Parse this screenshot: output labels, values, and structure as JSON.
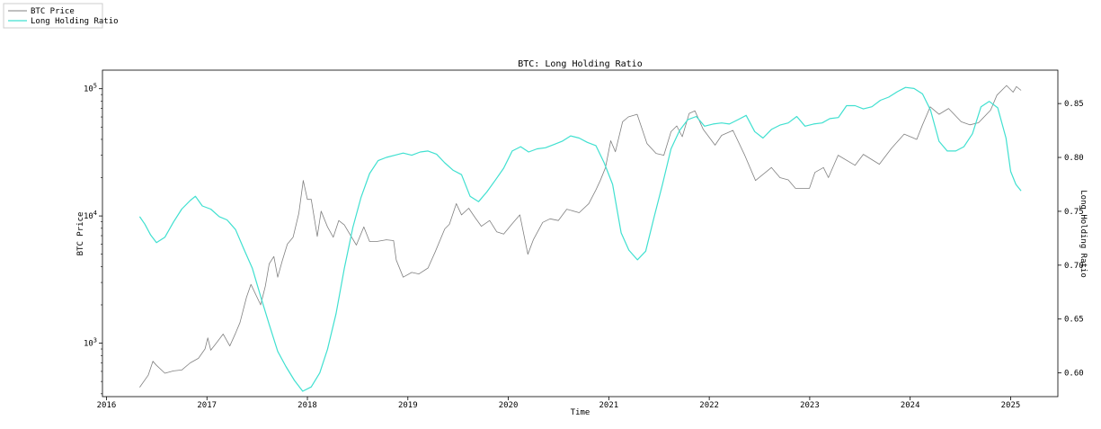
{
  "chart_data": {
    "type": "line",
    "title": "BTC: Long Holding Ratio",
    "xlabel": "Time",
    "ylabel_left": "BTC Price",
    "ylabel_right": "Long Holding Ratio",
    "x_ticks": [
      "2016",
      "2017",
      "2018",
      "2019",
      "2020",
      "2021",
      "2022",
      "2023",
      "2024",
      "2025"
    ],
    "y_left_scale": "log",
    "y_left_lim": [
      380,
      140000
    ],
    "y_left_ticks": [
      {
        "value": 1000,
        "base": "10",
        "exp": "3"
      },
      {
        "value": 10000,
        "base": "10",
        "exp": "4"
      },
      {
        "value": 100000,
        "base": "10",
        "exp": "5"
      }
    ],
    "y_right_lim": [
      0.578,
      0.881
    ],
    "y_right_ticks": [
      "0.60",
      "0.65",
      "0.70",
      "0.75",
      "0.80",
      "0.85"
    ],
    "legend": {
      "placement": "top-left outside",
      "entries": [
        "BTC Price",
        "Long Holding Ratio"
      ]
    },
    "series": [
      {
        "name": "BTC Price",
        "axis": "left",
        "color": "#808080",
        "points": [
          [
            "2016-05-01",
            450
          ],
          [
            "2016-06-01",
            560
          ],
          [
            "2016-06-18",
            720
          ],
          [
            "2016-07-01",
            670
          ],
          [
            "2016-08-01",
            580
          ],
          [
            "2016-09-01",
            605
          ],
          [
            "2016-10-01",
            615
          ],
          [
            "2016-11-01",
            700
          ],
          [
            "2016-12-01",
            760
          ],
          [
            "2016-12-25",
            900
          ],
          [
            "2017-01-04",
            1100
          ],
          [
            "2017-01-15",
            880
          ],
          [
            "2017-02-01",
            980
          ],
          [
            "2017-03-01",
            1180
          ],
          [
            "2017-03-25",
            950
          ],
          [
            "2017-04-15",
            1200
          ],
          [
            "2017-05-01",
            1450
          ],
          [
            "2017-05-25",
            2300
          ],
          [
            "2017-06-10",
            2900
          ],
          [
            "2017-07-15",
            2000
          ],
          [
            "2017-08-01",
            2800
          ],
          [
            "2017-08-15",
            4200
          ],
          [
            "2017-09-01",
            4800
          ],
          [
            "2017-09-15",
            3300
          ],
          [
            "2017-10-01",
            4400
          ],
          [
            "2017-10-20",
            6000
          ],
          [
            "2017-11-10",
            6800
          ],
          [
            "2017-12-01",
            10500
          ],
          [
            "2017-12-17",
            19000
          ],
          [
            "2018-01-01",
            13500
          ],
          [
            "2018-01-15",
            13500
          ],
          [
            "2018-02-06",
            6900
          ],
          [
            "2018-02-20",
            10900
          ],
          [
            "2018-03-15",
            8200
          ],
          [
            "2018-04-05",
            6800
          ],
          [
            "2018-04-25",
            9200
          ],
          [
            "2018-05-15",
            8500
          ],
          [
            "2018-06-28",
            5900
          ],
          [
            "2018-07-25",
            8200
          ],
          [
            "2018-08-15",
            6300
          ],
          [
            "2018-09-10",
            6300
          ],
          [
            "2018-10-15",
            6500
          ],
          [
            "2018-11-10",
            6400
          ],
          [
            "2018-11-20",
            4500
          ],
          [
            "2018-12-15",
            3300
          ],
          [
            "2019-01-15",
            3600
          ],
          [
            "2019-02-10",
            3500
          ],
          [
            "2019-03-15",
            3900
          ],
          [
            "2019-04-10",
            5200
          ],
          [
            "2019-05-15",
            7900
          ],
          [
            "2019-06-01",
            8600
          ],
          [
            "2019-06-26",
            12500
          ],
          [
            "2019-07-15",
            10200
          ],
          [
            "2019-08-10",
            11500
          ],
          [
            "2019-09-01",
            9800
          ],
          [
            "2019-09-25",
            8300
          ],
          [
            "2019-10-25",
            9200
          ],
          [
            "2019-11-20",
            7500
          ],
          [
            "2019-12-15",
            7200
          ],
          [
            "2020-01-15",
            8700
          ],
          [
            "2020-02-12",
            10200
          ],
          [
            "2020-03-12",
            5000
          ],
          [
            "2020-04-01",
            6500
          ],
          [
            "2020-05-05",
            8900
          ],
          [
            "2020-06-01",
            9500
          ],
          [
            "2020-07-01",
            9200
          ],
          [
            "2020-08-01",
            11300
          ],
          [
            "2020-09-15",
            10600
          ],
          [
            "2020-10-20",
            12500
          ],
          [
            "2020-11-15",
            16000
          ],
          [
            "2020-12-01",
            19000
          ],
          [
            "2020-12-20",
            24000
          ],
          [
            "2021-01-08",
            39000
          ],
          [
            "2021-01-25",
            32000
          ],
          [
            "2021-02-20",
            55000
          ],
          [
            "2021-03-13",
            60000
          ],
          [
            "2021-04-14",
            63000
          ],
          [
            "2021-05-20",
            37000
          ],
          [
            "2021-06-22",
            31000
          ],
          [
            "2021-07-20",
            30000
          ],
          [
            "2021-08-15",
            46000
          ],
          [
            "2021-09-05",
            51000
          ],
          [
            "2021-09-25",
            42000
          ],
          [
            "2021-10-20",
            64000
          ],
          [
            "2021-11-10",
            67000
          ],
          [
            "2021-12-10",
            48000
          ],
          [
            "2022-01-22",
            36000
          ],
          [
            "2022-02-15",
            43000
          ],
          [
            "2022-03-28",
            47000
          ],
          [
            "2022-05-10",
            30000
          ],
          [
            "2022-06-18",
            19000
          ],
          [
            "2022-08-15",
            24000
          ],
          [
            "2022-09-15",
            20000
          ],
          [
            "2022-10-15",
            19200
          ],
          [
            "2022-11-10",
            16500
          ],
          [
            "2022-12-31",
            16500
          ],
          [
            "2023-01-20",
            22000
          ],
          [
            "2023-02-20",
            24000
          ],
          [
            "2023-03-10",
            20000
          ],
          [
            "2023-04-14",
            30000
          ],
          [
            "2023-06-15",
            25000
          ],
          [
            "2023-07-15",
            30500
          ],
          [
            "2023-09-11",
            25500
          ],
          [
            "2023-10-25",
            34000
          ],
          [
            "2023-12-10",
            44000
          ],
          [
            "2024-01-25",
            40000
          ],
          [
            "2024-02-15",
            52000
          ],
          [
            "2024-03-14",
            72000
          ],
          [
            "2024-04-15",
            63000
          ],
          [
            "2024-05-20",
            70000
          ],
          [
            "2024-07-05",
            55000
          ],
          [
            "2024-08-05",
            52000
          ],
          [
            "2024-09-06",
            54000
          ],
          [
            "2024-10-20",
            68000
          ],
          [
            "2024-11-12",
            89000
          ],
          [
            "2024-12-17",
            106000
          ],
          [
            "2025-01-10",
            94000
          ],
          [
            "2025-01-22",
            104000
          ],
          [
            "2025-02-08",
            97000
          ]
        ]
      },
      {
        "name": "Long Holding Ratio",
        "axis": "right",
        "color": "#40e0d0",
        "points": [
          [
            "2016-05-01",
            0.745
          ],
          [
            "2016-05-20",
            0.738
          ],
          [
            "2016-06-10",
            0.728
          ],
          [
            "2016-07-01",
            0.721
          ],
          [
            "2016-08-01",
            0.726
          ],
          [
            "2016-09-01",
            0.74
          ],
          [
            "2016-10-01",
            0.752
          ],
          [
            "2016-11-01",
            0.76
          ],
          [
            "2016-11-20",
            0.764
          ],
          [
            "2016-12-15",
            0.755
          ],
          [
            "2017-01-15",
            0.752
          ],
          [
            "2017-02-15",
            0.745
          ],
          [
            "2017-03-15",
            0.742
          ],
          [
            "2017-04-15",
            0.733
          ],
          [
            "2017-05-15",
            0.715
          ],
          [
            "2017-06-15",
            0.697
          ],
          [
            "2017-07-15",
            0.671
          ],
          [
            "2017-08-15",
            0.645
          ],
          [
            "2017-09-15",
            0.62
          ],
          [
            "2017-10-15",
            0.606
          ],
          [
            "2017-11-15",
            0.593
          ],
          [
            "2017-12-15",
            0.583
          ],
          [
            "2018-01-15",
            0.587
          ],
          [
            "2018-02-15",
            0.6
          ],
          [
            "2018-03-15",
            0.622
          ],
          [
            "2018-04-15",
            0.655
          ],
          [
            "2018-05-15",
            0.697
          ],
          [
            "2018-06-15",
            0.735
          ],
          [
            "2018-07-15",
            0.763
          ],
          [
            "2018-08-15",
            0.785
          ],
          [
            "2018-09-15",
            0.797
          ],
          [
            "2018-10-15",
            0.8
          ],
          [
            "2018-11-15",
            0.802
          ],
          [
            "2018-12-15",
            0.804
          ],
          [
            "2019-01-15",
            0.802
          ],
          [
            "2019-02-15",
            0.805
          ],
          [
            "2019-03-15",
            0.806
          ],
          [
            "2019-04-15",
            0.803
          ],
          [
            "2019-05-15",
            0.795
          ],
          [
            "2019-06-15",
            0.788
          ],
          [
            "2019-07-15",
            0.784
          ],
          [
            "2019-08-15",
            0.764
          ],
          [
            "2019-09-15",
            0.759
          ],
          [
            "2019-10-15",
            0.768
          ],
          [
            "2019-11-15",
            0.779
          ],
          [
            "2019-12-15",
            0.79
          ],
          [
            "2020-01-15",
            0.806
          ],
          [
            "2020-02-15",
            0.81
          ],
          [
            "2020-03-15",
            0.805
          ],
          [
            "2020-04-15",
            0.808
          ],
          [
            "2020-05-15",
            0.809
          ],
          [
            "2020-06-15",
            0.812
          ],
          [
            "2020-07-15",
            0.815
          ],
          [
            "2020-08-15",
            0.82
          ],
          [
            "2020-09-15",
            0.818
          ],
          [
            "2020-10-15",
            0.814
          ],
          [
            "2020-11-15",
            0.811
          ],
          [
            "2020-12-15",
            0.795
          ],
          [
            "2021-01-15",
            0.775
          ],
          [
            "2021-02-15",
            0.73
          ],
          [
            "2021-03-15",
            0.714
          ],
          [
            "2021-04-15",
            0.705
          ],
          [
            "2021-05-15",
            0.713
          ],
          [
            "2021-06-15",
            0.745
          ],
          [
            "2021-07-15",
            0.775
          ],
          [
            "2021-08-15",
            0.808
          ],
          [
            "2021-09-15",
            0.825
          ],
          [
            "2021-10-15",
            0.835
          ],
          [
            "2021-11-15",
            0.838
          ],
          [
            "2021-12-15",
            0.829
          ],
          [
            "2022-01-15",
            0.831
          ],
          [
            "2022-02-15",
            0.832
          ],
          [
            "2022-03-15",
            0.831
          ],
          [
            "2022-04-15",
            0.835
          ],
          [
            "2022-05-15",
            0.839
          ],
          [
            "2022-06-15",
            0.824
          ],
          [
            "2022-07-15",
            0.818
          ],
          [
            "2022-08-15",
            0.826
          ],
          [
            "2022-09-15",
            0.83
          ],
          [
            "2022-10-15",
            0.832
          ],
          [
            "2022-11-15",
            0.838
          ],
          [
            "2022-12-15",
            0.829
          ],
          [
            "2023-01-15",
            0.831
          ],
          [
            "2023-02-15",
            0.832
          ],
          [
            "2023-03-15",
            0.836
          ],
          [
            "2023-04-15",
            0.837
          ],
          [
            "2023-05-15",
            0.848
          ],
          [
            "2023-06-15",
            0.848
          ],
          [
            "2023-07-15",
            0.845
          ],
          [
            "2023-08-15",
            0.847
          ],
          [
            "2023-09-15",
            0.853
          ],
          [
            "2023-10-15",
            0.856
          ],
          [
            "2023-11-15",
            0.861
          ],
          [
            "2023-12-15",
            0.865
          ],
          [
            "2024-01-15",
            0.864
          ],
          [
            "2024-02-15",
            0.859
          ],
          [
            "2024-03-15",
            0.844
          ],
          [
            "2024-04-15",
            0.815
          ],
          [
            "2024-05-15",
            0.806
          ],
          [
            "2024-06-15",
            0.806
          ],
          [
            "2024-07-15",
            0.81
          ],
          [
            "2024-08-15",
            0.822
          ],
          [
            "2024-09-15",
            0.847
          ],
          [
            "2024-10-15",
            0.852
          ],
          [
            "2024-11-15",
            0.846
          ],
          [
            "2024-12-15",
            0.818
          ],
          [
            "2025-01-01",
            0.787
          ],
          [
            "2025-01-20",
            0.775
          ],
          [
            "2025-02-08",
            0.769
          ]
        ]
      }
    ]
  }
}
